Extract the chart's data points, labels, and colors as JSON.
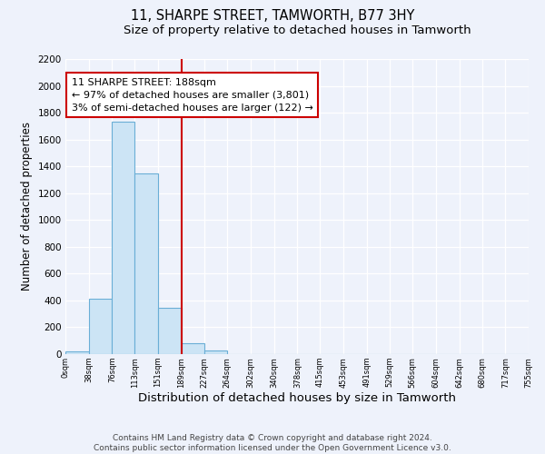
{
  "title": "11, SHARPE STREET, TAMWORTH, B77 3HY",
  "subtitle": "Size of property relative to detached houses in Tamworth",
  "xlabel": "Distribution of detached houses by size in Tamworth",
  "ylabel": "Number of detached properties",
  "bar_edges": [
    0,
    38,
    76,
    113,
    151,
    189,
    227,
    264,
    302,
    340,
    378,
    415,
    453,
    491,
    529,
    566,
    604,
    642,
    680,
    717,
    755
  ],
  "bar_heights": [
    20,
    415,
    1735,
    1350,
    345,
    80,
    30,
    0,
    0,
    0,
    0,
    0,
    0,
    0,
    0,
    0,
    0,
    0,
    0,
    0
  ],
  "bar_color": "#cce4f5",
  "bar_edge_color": "#6aaed6",
  "property_line_x": 189,
  "property_line_color": "#cc0000",
  "annotation_text": "11 SHARPE STREET: 188sqm\n← 97% of detached houses are smaller (3,801)\n3% of semi-detached houses are larger (122) →",
  "annotation_box_color": "#ffffff",
  "annotation_box_edge": "#cc0000",
  "ylim": [
    0,
    2200
  ],
  "yticks": [
    0,
    200,
    400,
    600,
    800,
    1000,
    1200,
    1400,
    1600,
    1800,
    2000,
    2200
  ],
  "xtick_labels": [
    "0sqm",
    "38sqm",
    "76sqm",
    "113sqm",
    "151sqm",
    "189sqm",
    "227sqm",
    "264sqm",
    "302sqm",
    "340sqm",
    "378sqm",
    "415sqm",
    "453sqm",
    "491sqm",
    "529sqm",
    "566sqm",
    "604sqm",
    "642sqm",
    "680sqm",
    "717sqm",
    "755sqm"
  ],
  "bg_color": "#eef2fb",
  "grid_color": "#ffffff",
  "footer_text": "Contains HM Land Registry data © Crown copyright and database right 2024.\nContains public sector information licensed under the Open Government Licence v3.0.",
  "title_fontsize": 10.5,
  "subtitle_fontsize": 9.5,
  "xlabel_fontsize": 9.5,
  "ylabel_fontsize": 8.5,
  "annotation_fontsize": 8,
  "footer_fontsize": 6.5
}
